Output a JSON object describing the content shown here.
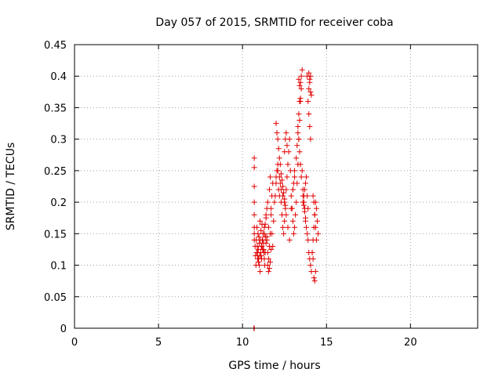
{
  "chart_data": {
    "type": "scatter",
    "title": "Day 057 of 2015, SRMTID for receiver coba",
    "xlabel": "GPS time / hours",
    "ylabel": "SRMTID / TECUs",
    "xlim": [
      0,
      24
    ],
    "ylim": [
      0,
      0.45
    ],
    "xticks": [
      0,
      5,
      10,
      15,
      20
    ],
    "yticks": [
      0,
      0.05,
      0.1,
      0.15,
      0.2,
      0.25,
      0.3,
      0.35,
      0.4,
      0.45
    ],
    "xtick_labels": [
      "0",
      "5",
      "10",
      "15",
      "20"
    ],
    "ytick_labels": [
      "0",
      "0.05",
      "0.1",
      "0.15",
      "0.2",
      "0.25",
      "0.3",
      "0.35",
      "0.4",
      "0.45"
    ],
    "grid": true,
    "marker": "+",
    "color": "#e00000",
    "series": [
      {
        "x": [
          10.7,
          10.7,
          10.7,
          10.7,
          10.7,
          10.7,
          10.7,
          10.7,
          10.75,
          10.78,
          10.8,
          10.82,
          10.84,
          10.86,
          10.88,
          10.9,
          10.92,
          10.94,
          10.96,
          10.98,
          11.0,
          11.02,
          11.04,
          11.06,
          11.08,
          11.1,
          11.12,
          11.14,
          11.16,
          11.18,
          11.2,
          11.22,
          11.25,
          11.28,
          11.3,
          11.33,
          11.36,
          11.4,
          11.45,
          11.5,
          11.55,
          11.6,
          11.65,
          11.7,
          11.75,
          11.8,
          11.85,
          11.9,
          11.95,
          12.0,
          12.05,
          12.1,
          12.15,
          12.2,
          12.25,
          12.3,
          12.35,
          12.4,
          12.45,
          12.5,
          12.55,
          12.6,
          12.65,
          12.7,
          12.75,
          12.8,
          12.85,
          12.9,
          12.95,
          13.0,
          13.05,
          13.1,
          13.15,
          13.2,
          13.25,
          13.3,
          13.35,
          13.4,
          13.45,
          13.5,
          13.55,
          13.6,
          13.65,
          13.7,
          13.75,
          13.8,
          13.85,
          13.9,
          13.95,
          14.0,
          14.05,
          14.1,
          14.15,
          14.2,
          14.25,
          14.3,
          14.35,
          14.4,
          14.45,
          14.5,
          11.45,
          11.5,
          11.55,
          11.6,
          11.65,
          11.7,
          11.75,
          11.8,
          12.0,
          12.1,
          12.2,
          12.3,
          12.4,
          12.5,
          12.6,
          12.7,
          12.8,
          12.9,
          13.0,
          13.1,
          13.2,
          13.25,
          13.3,
          13.35,
          13.4,
          13.45,
          13.5,
          13.55,
          13.9,
          13.95,
          14.0,
          14.05,
          14.1,
          13.3,
          13.35,
          13.4,
          13.45,
          13.5,
          13.35,
          13.4,
          13.45,
          13.95,
          14.0,
          14.05,
          13.85,
          13.95,
          14.0,
          14.05,
          11.5,
          11.55,
          11.6,
          11.65,
          11.7,
          11.3,
          11.35,
          11.4,
          12.5,
          12.55,
          12.6,
          12.65,
          13.0,
          13.05,
          13.1,
          13.6,
          13.65,
          13.7,
          13.75,
          14.15,
          14.2,
          14.25,
          14.3,
          14.35,
          10.9,
          10.95,
          11.0,
          11.05,
          11.1,
          11.15,
          11.2,
          11.25,
          11.3,
          11.35,
          11.4,
          11.45,
          12.0,
          12.05,
          12.1,
          12.15,
          12.2,
          12.25,
          12.3,
          12.35,
          12.4,
          12.45,
          12.5,
          12.55,
          13.6,
          13.65,
          13.7,
          13.75,
          13.8,
          13.85,
          13.9,
          14.2,
          14.25,
          14.3,
          14.35,
          14.4,
          10.68,
          10.69,
          10.7
        ],
        "y": [
          0.27,
          0.255,
          0.225,
          0.2,
          0.18,
          0.16,
          0.15,
          0.14,
          0.13,
          0.115,
          0.1,
          0.14,
          0.12,
          0.16,
          0.13,
          0.11,
          0.15,
          0.125,
          0.105,
          0.145,
          0.135,
          0.115,
          0.17,
          0.14,
          0.12,
          0.155,
          0.13,
          0.11,
          0.165,
          0.14,
          0.125,
          0.15,
          0.135,
          0.12,
          0.16,
          0.1,
          0.145,
          0.18,
          0.19,
          0.2,
          0.16,
          0.22,
          0.24,
          0.18,
          0.15,
          0.13,
          0.17,
          0.2,
          0.21,
          0.23,
          0.25,
          0.26,
          0.22,
          0.21,
          0.23,
          0.2,
          0.18,
          0.16,
          0.15,
          0.17,
          0.19,
          0.22,
          0.24,
          0.26,
          0.28,
          0.3,
          0.25,
          0.21,
          0.19,
          0.17,
          0.15,
          0.16,
          0.18,
          0.2,
          0.23,
          0.26,
          0.3,
          0.33,
          0.36,
          0.38,
          0.25,
          0.22,
          0.2,
          0.19,
          0.17,
          0.16,
          0.15,
          0.14,
          0.12,
          0.11,
          0.1,
          0.09,
          0.12,
          0.14,
          0.16,
          0.18,
          0.2,
          0.19,
          0.17,
          0.15,
          0.14,
          0.12,
          0.11,
          0.13,
          0.15,
          0.19,
          0.21,
          0.23,
          0.24,
          0.25,
          0.24,
          0.22,
          0.21,
          0.2,
          0.18,
          0.16,
          0.14,
          0.19,
          0.22,
          0.25,
          0.27,
          0.29,
          0.31,
          0.34,
          0.36,
          0.39,
          0.4,
          0.41,
          0.36,
          0.38,
          0.39,
          0.4,
          0.37,
          0.32,
          0.3,
          0.28,
          0.26,
          0.24,
          0.395,
          0.385,
          0.365,
          0.34,
          0.32,
          0.3,
          0.4,
          0.405,
          0.395,
          0.375,
          0.1,
          0.09,
          0.095,
          0.105,
          0.125,
          0.15,
          0.165,
          0.175,
          0.28,
          0.3,
          0.31,
          0.29,
          0.22,
          0.23,
          0.24,
          0.21,
          0.195,
          0.185,
          0.175,
          0.12,
          0.11,
          0.08,
          0.075,
          0.09,
          0.12,
          0.11,
          0.1,
          0.09,
          0.115,
          0.13,
          0.14,
          0.125,
          0.11,
          0.12,
          0.135,
          0.145,
          0.325,
          0.31,
          0.3,
          0.285,
          0.27,
          0.26,
          0.245,
          0.235,
          0.225,
          0.215,
          0.205,
          0.195,
          0.2,
          0.21,
          0.22,
          0.23,
          0.24,
          0.21,
          0.19,
          0.21,
          0.2,
          0.18,
          0.16,
          0.14,
          0.0,
          0.0,
          0.0
        ]
      }
    ]
  }
}
